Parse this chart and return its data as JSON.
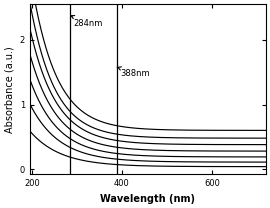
{
  "xlabel": "Wavelength (nm)",
  "ylabel": "Absorbance (a.u.)",
  "xlim": [
    195,
    720
  ],
  "ylim": [
    -0.08,
    2.55
  ],
  "xticks": [
    200,
    400,
    600
  ],
  "yticks": [
    0,
    1,
    2
  ],
  "vline1_x": 284,
  "vline2_x": 388,
  "annotation1": "284nm",
  "annotation2": "388nm",
  "background_color": "#ffffff",
  "line_color": "#000000",
  "tick_fontsize": 6,
  "label_fontsize": 7,
  "curves_params": [
    [
      2.45,
      0.6,
      55
    ],
    [
      2.1,
      0.48,
      55
    ],
    [
      1.8,
      0.38,
      58
    ],
    [
      1.5,
      0.28,
      60
    ],
    [
      1.2,
      0.19,
      62
    ],
    [
      0.9,
      0.11,
      65
    ],
    [
      0.55,
      0.04,
      68
    ]
  ]
}
